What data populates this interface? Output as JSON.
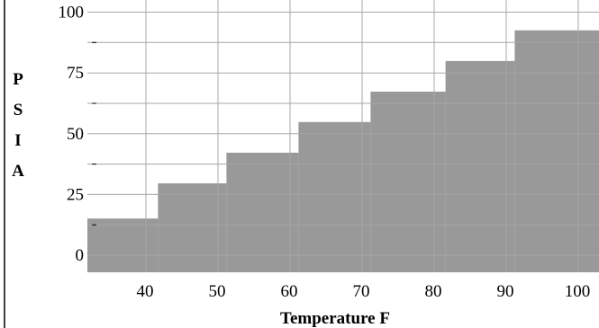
{
  "chart_data": {
    "type": "bar",
    "style": "step",
    "xlabel": "Temperature F",
    "ylabel_letters": [
      "P",
      "S",
      "I",
      "A"
    ],
    "x_ticks": [
      40,
      50,
      60,
      70,
      80,
      90,
      100
    ],
    "y_ticks": [
      0,
      25,
      50,
      75,
      100
    ],
    "xlim": [
      32,
      103
    ],
    "ylim": [
      -7,
      105
    ],
    "values": [
      {
        "x_start": 32,
        "x_end": 41.8,
        "value": 15.1
      },
      {
        "x_start": 41.8,
        "x_end": 51.3,
        "value": 29.6
      },
      {
        "x_start": 51.3,
        "x_end": 61.3,
        "value": 42.2
      },
      {
        "x_start": 61.3,
        "x_end": 71.3,
        "value": 54.8
      },
      {
        "x_start": 71.3,
        "x_end": 81.7,
        "value": 67.3
      },
      {
        "x_start": 81.7,
        "x_end": 91.3,
        "value": 79.9
      },
      {
        "x_start": 91.3,
        "x_end": 103,
        "value": 92.5
      }
    ],
    "bar_color": "#999999",
    "grid": true,
    "legend": "none"
  }
}
